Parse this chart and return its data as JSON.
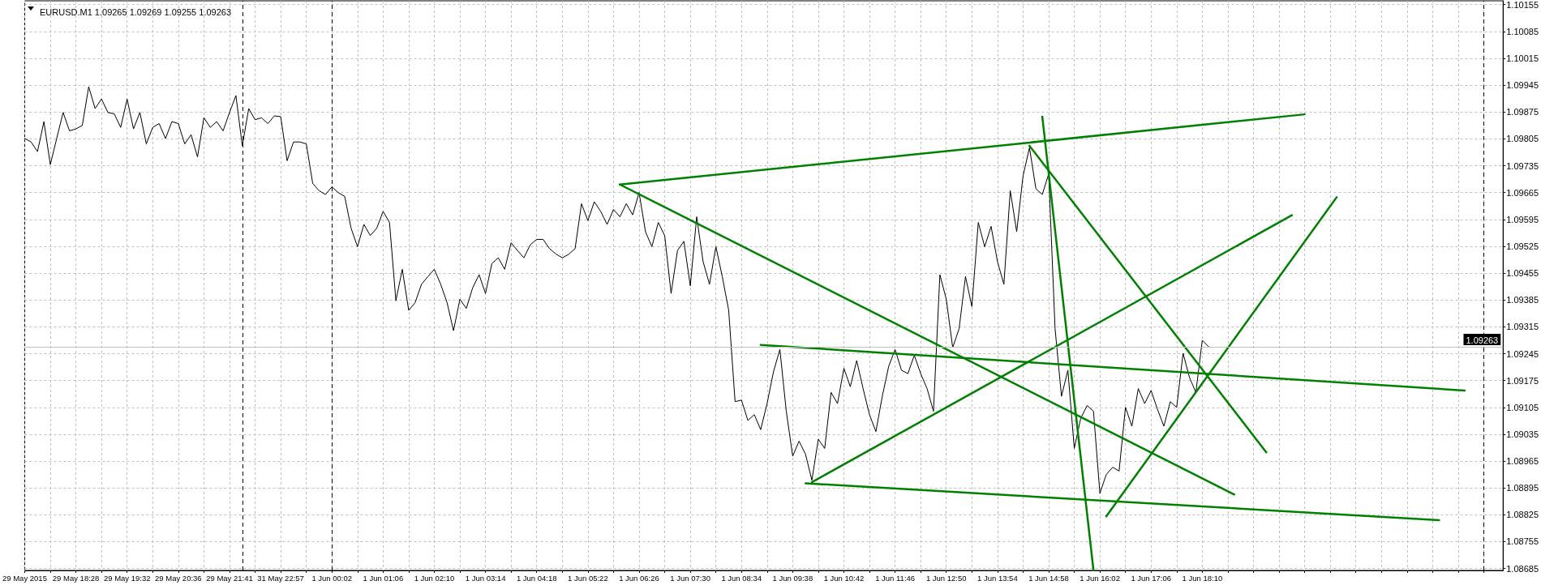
{
  "chart_data": {
    "type": "line",
    "title": "EURUSD.M1 1.09265 1.09269 1.09255 1.09263",
    "categories": [
      "29 May 2015",
      null,
      null,
      null,
      null,
      null,
      null,
      null,
      "29 May 18:28",
      null,
      null,
      null,
      null,
      null,
      null,
      null,
      "29 May 19:32",
      null,
      null,
      null,
      null,
      null,
      null,
      null,
      "29 May 20:36",
      null,
      null,
      null,
      null,
      null,
      null,
      null,
      "29 May 21:41",
      null,
      null,
      null,
      null,
      null,
      null,
      null,
      "31 May 22:57",
      null,
      null,
      null,
      null,
      null,
      null,
      null,
      "1 Jun 00:02",
      null,
      null,
      null,
      null,
      null,
      null,
      null,
      "1 Jun 01:06",
      null,
      null,
      null,
      null,
      null,
      null,
      null,
      "1 Jun 02:10",
      null,
      null,
      null,
      null,
      null,
      null,
      null,
      "1 Jun 03:14",
      null,
      null,
      null,
      null,
      null,
      null,
      null,
      "1 Jun 04:18",
      null,
      null,
      null,
      null,
      null,
      null,
      null,
      "1 Jun 05:22",
      null,
      null,
      null,
      null,
      null,
      null,
      null,
      "1 Jun 06:26",
      null,
      null,
      null,
      null,
      null,
      null,
      null,
      "1 Jun 07:30",
      null,
      null,
      null,
      null,
      null,
      null,
      null,
      "1 Jun 08:34",
      null,
      null,
      null,
      null,
      null,
      null,
      null,
      "1 Jun 09:38",
      null,
      null,
      null,
      null,
      null,
      null,
      null,
      "1 Jun 10:42",
      null,
      null,
      null,
      null,
      null,
      null,
      null,
      "1 Jun 11:46",
      null,
      null,
      null,
      null,
      null,
      null,
      null,
      "1 Jun 12:50",
      null,
      null,
      null,
      null,
      null,
      null,
      null,
      "1 Jun 13:54",
      null,
      null,
      null,
      null,
      null,
      null,
      null,
      "1 Jun 14:58",
      null,
      null,
      null,
      null,
      null,
      null,
      null,
      "1 Jun 16:02",
      null,
      null,
      null,
      null,
      null,
      null,
      null,
      "1 Jun 17:06",
      null,
      null,
      null,
      null,
      null,
      null,
      null,
      "1 Jun 18:10",
      null,
      null,
      null,
      null,
      null,
      null,
      null,
      null,
      null,
      null,
      null,
      null,
      null,
      null,
      null,
      null,
      null,
      null,
      null,
      null,
      null,
      null,
      null,
      null,
      null,
      null,
      null,
      null,
      null,
      null,
      null,
      null,
      null,
      null,
      null,
      null,
      null,
      null,
      null,
      null,
      null,
      null,
      null,
      null,
      null,
      null,
      null
    ],
    "series": [
      {
        "color": "#000000",
        "values": [
          1.09806,
          1.09797,
          1.09772,
          1.0985,
          1.09738,
          1.09806,
          1.09874,
          1.09826,
          1.09831,
          1.0984,
          1.09941,
          1.09884,
          1.09909,
          1.09874,
          1.0987,
          1.09835,
          1.09909,
          1.09831,
          1.09874,
          1.09792,
          1.09835,
          1.09845,
          1.09806,
          1.0985,
          1.09845,
          1.09792,
          1.09816,
          1.09758,
          1.0986,
          1.09835,
          1.0985,
          1.09826,
          1.09874,
          1.09918,
          1.09787,
          1.09884,
          1.09855,
          1.0986,
          1.09845,
          1.09865,
          1.09863,
          1.09748,
          1.09797,
          1.09797,
          1.09792,
          1.09689,
          1.0967,
          1.0966,
          1.0968,
          1.09665,
          1.09655,
          1.09572,
          1.09524,
          1.09582,
          1.09553,
          1.09572,
          1.09616,
          1.09587,
          1.09383,
          1.09465,
          1.09358,
          1.09378,
          1.09426,
          1.09446,
          1.09465,
          1.09426,
          1.09378,
          1.09305,
          1.09387,
          1.09363,
          1.09417,
          1.09451,
          1.09402,
          1.0948,
          1.09495,
          1.09465,
          1.09534,
          1.09514,
          1.09495,
          1.09529,
          1.09543,
          1.09543,
          1.09519,
          1.09505,
          1.09495,
          1.09504,
          1.09519,
          1.09636,
          1.09592,
          1.09641,
          1.09616,
          1.09582,
          1.09621,
          1.09602,
          1.09636,
          1.09607,
          1.09665,
          1.09563,
          1.09524,
          1.09587,
          1.09553,
          1.09402,
          1.09514,
          1.09538,
          1.09422,
          1.09602,
          1.09485,
          1.09426,
          1.09524,
          1.09446,
          1.09358,
          1.0912,
          1.09124,
          1.09071,
          1.09086,
          1.09047,
          1.09115,
          1.09198,
          1.09256,
          1.09095,
          1.08978,
          1.09017,
          1.08983,
          1.08915,
          1.09022,
          1.08998,
          1.09144,
          1.09115,
          1.09207,
          1.09159,
          1.09227,
          1.09154,
          1.09086,
          1.09042,
          1.09134,
          1.09212,
          1.09256,
          1.09202,
          1.09193,
          1.09241,
          1.09193,
          1.09154,
          1.09095,
          1.09451,
          1.09387,
          1.09261,
          1.0931,
          1.09446,
          1.09368,
          1.09587,
          1.09524,
          1.09577,
          1.09485,
          1.09426,
          1.0967,
          1.09563,
          1.09709,
          1.09782,
          1.09675,
          1.0966,
          1.09714,
          1.0931,
          1.09134,
          1.09202,
          1.08998,
          1.09076,
          1.0911,
          1.09095,
          1.08881,
          1.0893,
          1.08949,
          1.08939,
          1.09105,
          1.09056,
          1.09154,
          1.09115,
          1.09149,
          1.091,
          1.09056,
          1.0912,
          1.09105,
          1.09246,
          1.09183,
          1.09144,
          1.0928,
          1.09263,
          null,
          null,
          null,
          null,
          null,
          null,
          null,
          null,
          null,
          null,
          null,
          null,
          null,
          null,
          null,
          null,
          null,
          null,
          null,
          null,
          null,
          null,
          null,
          null,
          null,
          null,
          null,
          null,
          null,
          null,
          null,
          null,
          null,
          null,
          null,
          null,
          null,
          null,
          null,
          null,
          null,
          null,
          null,
          null,
          null,
          null
        ]
      },
      {
        "color": "#008000",
        "values": [
          null,
          null,
          null,
          null,
          null,
          null,
          null,
          null,
          null,
          null,
          null,
          null,
          null,
          null,
          null,
          null,
          null,
          null,
          null,
          null,
          null,
          null,
          null,
          null,
          null,
          null,
          null,
          null,
          null,
          null,
          null,
          null,
          null,
          null,
          null,
          null,
          null,
          null,
          null,
          null,
          null,
          null,
          null,
          null,
          null,
          null,
          null,
          null,
          null,
          null,
          null,
          null,
          null,
          null,
          null,
          null,
          null,
          null,
          null,
          null,
          null,
          null,
          null,
          null,
          null,
          null,
          null,
          null,
          null,
          null,
          null,
          null,
          null,
          null,
          null,
          null,
          null,
          null,
          null,
          null,
          null,
          null,
          null,
          null,
          null,
          null,
          null,
          null,
          null,
          null,
          null,
          null,
          null,
          1.09686,
          null,
          null,
          null,
          null,
          null,
          null,
          null,
          null,
          null,
          null,
          null,
          null,
          null,
          null,
          null,
          null,
          null,
          null,
          null,
          null,
          null,
          null,
          null,
          null,
          null,
          null,
          null,
          null,
          null,
          null,
          null,
          null,
          null,
          null,
          null,
          null,
          null,
          null,
          null,
          null,
          null,
          null,
          null,
          null,
          null,
          null,
          null,
          null,
          null,
          null,
          null,
          null,
          null,
          null,
          null,
          null,
          null,
          null,
          null,
          null,
          null,
          null,
          null,
          null,
          null,
          null,
          null,
          null,
          null,
          null,
          null,
          null,
          null,
          null,
          null,
          null,
          null,
          null,
          null,
          null,
          null,
          null,
          null,
          null,
          null,
          null,
          null,
          null,
          null,
          null,
          null,
          null,
          null,
          null,
          null,
          null,
          null,
          null,
          null,
          null,
          null,
          null,
          null,
          null,
          null,
          null,
          1.09869,
          null,
          null,
          null,
          null,
          null,
          null,
          null,
          null,
          null,
          null,
          null,
          null,
          null,
          null,
          null,
          null,
          null,
          null,
          null,
          null,
          null,
          null,
          null,
          null,
          null,
          null,
          null,
          null,
          null,
          null,
          null
        ]
      },
      {
        "color": "#008000",
        "values": [
          null,
          null,
          null,
          null,
          null,
          null,
          null,
          null,
          null,
          null,
          null,
          null,
          null,
          null,
          null,
          null,
          null,
          null,
          null,
          null,
          null,
          null,
          null,
          null,
          null,
          null,
          null,
          null,
          null,
          null,
          null,
          null,
          null,
          null,
          null,
          null,
          null,
          null,
          null,
          null,
          null,
          null,
          null,
          null,
          null,
          null,
          null,
          null,
          null,
          null,
          null,
          null,
          null,
          null,
          null,
          null,
          null,
          null,
          null,
          null,
          null,
          null,
          null,
          null,
          null,
          null,
          null,
          null,
          null,
          null,
          null,
          null,
          null,
          null,
          null,
          null,
          null,
          null,
          null,
          null,
          null,
          null,
          null,
          null,
          null,
          null,
          null,
          null,
          null,
          null,
          null,
          null,
          null,
          1.09686,
          null,
          null,
          null,
          null,
          null,
          null,
          null,
          null,
          null,
          null,
          null,
          null,
          null,
          null,
          null,
          null,
          null,
          null,
          null,
          null,
          null,
          null,
          null,
          null,
          null,
          null,
          null,
          null,
          null,
          null,
          null,
          null,
          null,
          null,
          null,
          null,
          null,
          null,
          null,
          null,
          null,
          null,
          null,
          null,
          null,
          null,
          null,
          null,
          null,
          null,
          null,
          null,
          null,
          null,
          null,
          null,
          null,
          null,
          null,
          null,
          null,
          null,
          null,
          null,
          null,
          null,
          null,
          null,
          null,
          null,
          null,
          null,
          null,
          null,
          null,
          null,
          null,
          null,
          null,
          null,
          null,
          null,
          null,
          null,
          null,
          null,
          null,
          null,
          null,
          null,
          null,
          null,
          null,
          null,
          null,
          1.08878,
          null,
          null,
          null,
          null,
          null,
          null,
          null,
          null,
          null,
          null,
          null,
          null,
          null,
          null,
          null,
          null,
          null,
          null,
          null,
          null,
          null,
          null,
          null,
          null,
          null,
          null,
          null,
          null,
          null,
          null,
          null,
          null,
          null,
          null,
          null,
          null,
          null,
          null,
          null,
          null,
          null,
          null
        ]
      },
      {
        "color": "#008000",
        "values": [
          null,
          null,
          null,
          null,
          null,
          null,
          null,
          null,
          null,
          null,
          null,
          null,
          null,
          null,
          null,
          null,
          null,
          null,
          null,
          null,
          null,
          null,
          null,
          null,
          null,
          null,
          null,
          null,
          null,
          null,
          null,
          null,
          null,
          null,
          null,
          null,
          null,
          null,
          null,
          null,
          null,
          null,
          null,
          null,
          null,
          null,
          null,
          null,
          null,
          null,
          null,
          null,
          null,
          null,
          null,
          null,
          null,
          null,
          null,
          null,
          null,
          null,
          null,
          null,
          null,
          null,
          null,
          null,
          null,
          null,
          null,
          null,
          null,
          null,
          null,
          null,
          null,
          null,
          null,
          null,
          null,
          null,
          null,
          null,
          null,
          null,
          null,
          null,
          null,
          null,
          null,
          null,
          null,
          null,
          null,
          null,
          null,
          null,
          null,
          null,
          null,
          null,
          null,
          null,
          null,
          null,
          null,
          null,
          null,
          null,
          null,
          null,
          null,
          null,
          null,
          1.09268,
          null,
          null,
          null,
          null,
          null,
          null,
          null,
          null,
          null,
          null,
          null,
          null,
          null,
          null,
          null,
          null,
          null,
          null,
          null,
          null,
          null,
          null,
          null,
          null,
          null,
          null,
          null,
          null,
          null,
          null,
          null,
          null,
          null,
          null,
          null,
          null,
          null,
          null,
          null,
          null,
          null,
          null,
          null,
          null,
          null,
          null,
          null,
          null,
          null,
          null,
          null,
          null,
          null,
          null,
          null,
          null,
          null,
          null,
          null,
          null,
          null,
          null,
          null,
          null,
          null,
          null,
          null,
          null,
          null,
          null,
          null,
          null,
          null,
          null,
          null,
          null,
          null,
          null,
          null,
          null,
          null,
          null,
          null,
          null,
          null,
          null,
          null,
          null,
          null,
          null,
          null,
          null,
          null,
          null,
          null,
          null,
          null,
          null,
          null,
          null,
          null,
          null,
          null,
          null,
          null,
          null,
          null,
          null,
          null,
          1.09149,
          null,
          null,
          null,
          null,
          null,
          null
        ]
      },
      {
        "color": "#008000",
        "values": [
          null,
          null,
          null,
          null,
          null,
          null,
          null,
          null,
          null,
          null,
          null,
          null,
          null,
          null,
          null,
          null,
          null,
          null,
          null,
          null,
          null,
          null,
          null,
          null,
          null,
          null,
          null,
          null,
          null,
          null,
          null,
          null,
          null,
          null,
          null,
          null,
          null,
          null,
          null,
          null,
          null,
          null,
          null,
          null,
          null,
          null,
          null,
          null,
          null,
          null,
          null,
          null,
          null,
          null,
          null,
          null,
          null,
          null,
          null,
          null,
          null,
          null,
          null,
          null,
          null,
          null,
          null,
          null,
          null,
          null,
          null,
          null,
          null,
          null,
          null,
          null,
          null,
          null,
          null,
          null,
          null,
          null,
          null,
          null,
          null,
          null,
          null,
          null,
          null,
          null,
          null,
          null,
          null,
          null,
          null,
          null,
          null,
          null,
          null,
          null,
          null,
          null,
          null,
          null,
          null,
          null,
          null,
          null,
          null,
          null,
          null,
          null,
          null,
          null,
          null,
          null,
          null,
          null,
          null,
          null,
          null,
          null,
          1.08907,
          null,
          null,
          null,
          null,
          null,
          null,
          null,
          null,
          null,
          null,
          null,
          null,
          null,
          null,
          null,
          null,
          null,
          null,
          null,
          null,
          null,
          null,
          null,
          null,
          null,
          null,
          null,
          null,
          null,
          null,
          null,
          null,
          null,
          null,
          null,
          null,
          null,
          null,
          null,
          null,
          null,
          null,
          null,
          null,
          null,
          null,
          null,
          null,
          null,
          null,
          null,
          null,
          null,
          null,
          null,
          null,
          null,
          null,
          null,
          null,
          null,
          null,
          null,
          null,
          null,
          null,
          null,
          null,
          null,
          null,
          null,
          null,
          null,
          null,
          null,
          null,
          null,
          null,
          null,
          null,
          null,
          null,
          null,
          null,
          null,
          null,
          null,
          null,
          null,
          null,
          null,
          null,
          null,
          null,
          null,
          null,
          null,
          null,
          1.08811,
          null,
          null,
          null,
          null,
          null,
          null,
          null,
          null,
          null,
          null
        ]
      },
      {
        "color": "#008000",
        "values": [
          null,
          null,
          null,
          null,
          null,
          null,
          null,
          null,
          null,
          null,
          null,
          null,
          null,
          null,
          null,
          null,
          null,
          null,
          null,
          null,
          null,
          null,
          null,
          null,
          null,
          null,
          null,
          null,
          null,
          null,
          null,
          null,
          null,
          null,
          null,
          null,
          null,
          null,
          null,
          null,
          null,
          null,
          null,
          null,
          null,
          null,
          null,
          null,
          null,
          null,
          null,
          null,
          null,
          null,
          null,
          null,
          null,
          null,
          null,
          null,
          null,
          null,
          null,
          null,
          null,
          null,
          null,
          null,
          null,
          null,
          null,
          null,
          null,
          null,
          null,
          null,
          null,
          null,
          null,
          null,
          null,
          null,
          null,
          null,
          null,
          null,
          null,
          null,
          null,
          null,
          null,
          null,
          null,
          null,
          null,
          null,
          null,
          null,
          null,
          null,
          null,
          null,
          null,
          null,
          null,
          null,
          null,
          null,
          null,
          null,
          null,
          null,
          null,
          null,
          null,
          null,
          null,
          null,
          null,
          null,
          null,
          null,
          null,
          1.0891,
          null,
          null,
          null,
          null,
          null,
          null,
          null,
          null,
          null,
          null,
          null,
          null,
          null,
          null,
          null,
          null,
          null,
          null,
          null,
          null,
          null,
          null,
          null,
          null,
          null,
          null,
          null,
          null,
          null,
          null,
          null,
          null,
          null,
          null,
          null,
          null,
          null,
          null,
          null,
          null,
          null,
          null,
          null,
          null,
          null,
          null,
          null,
          null,
          null,
          null,
          null,
          null,
          null,
          null,
          null,
          null,
          null,
          null,
          null,
          null,
          null,
          null,
          null,
          null,
          null,
          null,
          null,
          null,
          null,
          null,
          null,
          null,
          null,
          null,
          1.09606,
          null,
          null,
          null,
          null,
          null,
          null,
          null,
          null,
          null,
          null,
          null,
          null,
          null,
          null,
          null,
          null,
          null,
          null,
          null,
          null,
          null,
          null,
          null,
          null,
          null,
          null,
          null,
          null,
          null,
          null,
          null,
          null,
          null
        ]
      },
      {
        "color": "#008000",
        "values": [
          null,
          null,
          null,
          null,
          null,
          null,
          null,
          null,
          null,
          null,
          null,
          null,
          null,
          null,
          null,
          null,
          null,
          null,
          null,
          null,
          null,
          null,
          null,
          null,
          null,
          null,
          null,
          null,
          null,
          null,
          null,
          null,
          null,
          null,
          null,
          null,
          null,
          null,
          null,
          null,
          null,
          null,
          null,
          null,
          null,
          null,
          null,
          null,
          null,
          null,
          null,
          null,
          null,
          null,
          null,
          null,
          null,
          null,
          null,
          null,
          null,
          null,
          null,
          null,
          null,
          null,
          null,
          null,
          null,
          null,
          null,
          null,
          null,
          null,
          null,
          null,
          null,
          null,
          null,
          null,
          null,
          null,
          null,
          null,
          null,
          null,
          null,
          null,
          null,
          null,
          null,
          null,
          null,
          null,
          null,
          null,
          null,
          null,
          null,
          null,
          null,
          null,
          null,
          null,
          null,
          null,
          null,
          null,
          null,
          null,
          null,
          null,
          null,
          null,
          null,
          null,
          null,
          null,
          null,
          null,
          null,
          null,
          null,
          null,
          null,
          null,
          null,
          null,
          null,
          null,
          null,
          null,
          null,
          null,
          null,
          null,
          null,
          null,
          null,
          null,
          null,
          null,
          null,
          null,
          null,
          null,
          null,
          null,
          null,
          null,
          null,
          null,
          null,
          null,
          null,
          null,
          null,
          1.09787,
          null,
          null,
          null,
          null,
          null,
          null,
          null,
          null,
          null,
          null,
          null,
          null,
          null,
          null,
          null,
          null,
          null,
          null,
          null,
          null,
          null,
          null,
          null,
          null,
          null,
          null,
          null,
          null,
          null,
          null,
          null,
          null,
          null,
          null,
          null,
          null,
          1.08988,
          null,
          null,
          null,
          null,
          null,
          null,
          null,
          null,
          null,
          null,
          null,
          null,
          null,
          null,
          null,
          null,
          null,
          null,
          null,
          null,
          null,
          null,
          null,
          null,
          null,
          null,
          null,
          null,
          null,
          null,
          null,
          null,
          null,
          null,
          null,
          null,
          null
        ]
      },
      {
        "color": "#008000",
        "values": [
          null,
          null,
          null,
          null,
          null,
          null,
          null,
          null,
          null,
          null,
          null,
          null,
          null,
          null,
          null,
          null,
          null,
          null,
          null,
          null,
          null,
          null,
          null,
          null,
          null,
          null,
          null,
          null,
          null,
          null,
          null,
          null,
          null,
          null,
          null,
          null,
          null,
          null,
          null,
          null,
          null,
          null,
          null,
          null,
          null,
          null,
          null,
          null,
          null,
          null,
          null,
          null,
          null,
          null,
          null,
          null,
          null,
          null,
          null,
          null,
          null,
          null,
          null,
          null,
          null,
          null,
          null,
          null,
          null,
          null,
          null,
          null,
          null,
          null,
          null,
          null,
          null,
          null,
          null,
          null,
          null,
          null,
          null,
          null,
          null,
          null,
          null,
          null,
          null,
          null,
          null,
          null,
          null,
          null,
          null,
          null,
          null,
          null,
          null,
          null,
          null,
          null,
          null,
          null,
          null,
          null,
          null,
          null,
          null,
          null,
          null,
          null,
          null,
          null,
          null,
          null,
          null,
          null,
          null,
          null,
          null,
          null,
          null,
          null,
          null,
          null,
          null,
          null,
          null,
          null,
          null,
          null,
          null,
          null,
          null,
          null,
          null,
          null,
          null,
          null,
          null,
          null,
          null,
          null,
          null,
          null,
          null,
          null,
          null,
          null,
          null,
          null,
          null,
          null,
          null,
          null,
          null,
          null,
          null,
          1.09863,
          null,
          null,
          null,
          null,
          null,
          null,
          null,
          1.0868,
          null,
          null,
          null,
          null,
          null,
          null,
          null,
          null,
          null,
          null,
          null,
          null,
          null,
          null,
          null,
          null,
          null,
          null,
          null,
          null,
          null,
          null,
          null,
          null,
          null,
          null,
          null,
          null,
          null,
          null,
          null,
          null,
          null,
          null,
          null,
          null,
          null,
          null,
          null,
          null,
          null,
          null,
          null,
          null,
          null,
          null,
          null,
          null,
          null,
          null,
          null,
          null,
          null,
          null,
          null,
          null,
          null,
          null,
          null,
          null,
          null,
          null,
          null,
          null
        ]
      },
      {
        "color": "#008000",
        "values": [
          null,
          null,
          null,
          null,
          null,
          null,
          null,
          null,
          null,
          null,
          null,
          null,
          null,
          null,
          null,
          null,
          null,
          null,
          null,
          null,
          null,
          null,
          null,
          null,
          null,
          null,
          null,
          null,
          null,
          null,
          null,
          null,
          null,
          null,
          null,
          null,
          null,
          null,
          null,
          null,
          null,
          null,
          null,
          null,
          null,
          null,
          null,
          null,
          null,
          null,
          null,
          null,
          null,
          null,
          null,
          null,
          null,
          null,
          null,
          null,
          null,
          null,
          null,
          null,
          null,
          null,
          null,
          null,
          null,
          null,
          null,
          null,
          null,
          null,
          null,
          null,
          null,
          null,
          null,
          null,
          null,
          null,
          null,
          null,
          null,
          null,
          null,
          null,
          null,
          null,
          null,
          null,
          null,
          null,
          null,
          null,
          null,
          null,
          null,
          null,
          null,
          null,
          null,
          null,
          null,
          null,
          null,
          null,
          null,
          null,
          null,
          null,
          null,
          null,
          null,
          null,
          null,
          null,
          null,
          null,
          null,
          null,
          null,
          null,
          null,
          null,
          null,
          null,
          null,
          null,
          null,
          null,
          null,
          null,
          null,
          null,
          null,
          null,
          null,
          null,
          null,
          null,
          null,
          null,
          null,
          null,
          null,
          null,
          null,
          null,
          null,
          null,
          null,
          null,
          null,
          null,
          null,
          null,
          null,
          null,
          null,
          null,
          null,
          null,
          null,
          null,
          null,
          null,
          null,
          1.08821,
          null,
          null,
          null,
          null,
          null,
          null,
          null,
          null,
          null,
          null,
          null,
          null,
          null,
          null,
          null,
          null,
          null,
          null,
          null,
          null,
          null,
          null,
          null,
          null,
          null,
          null,
          null,
          null,
          null,
          null,
          null,
          null,
          null,
          null,
          null,
          1.09653,
          null,
          null,
          null,
          null,
          null,
          null,
          null,
          null,
          null,
          null,
          null,
          null,
          null,
          null,
          null,
          null,
          null,
          null,
          null,
          null,
          null,
          null,
          null,
          null,
          null,
          null
        ]
      }
    ],
    "ylim": [
      1.0868,
      1.10165
    ],
    "yticks": [
      1.08685,
      1.08755,
      1.08825,
      1.08895,
      1.08965,
      1.09035,
      1.09105,
      1.09175,
      1.09245,
      1.09315,
      1.09385,
      1.09455,
      1.09525,
      1.09595,
      1.09665,
      1.09735,
      1.09805,
      1.09875,
      1.09945,
      1.10015,
      1.10085,
      1.10155
    ],
    "ref_lines": [
      {
        "axis": "y",
        "value": 1.09263,
        "label": "1.09263",
        "color": "#c0c0c0",
        "line_style": "solid"
      }
    ],
    "grid": true,
    "marker": "none",
    "line_style": "solid"
  }
}
